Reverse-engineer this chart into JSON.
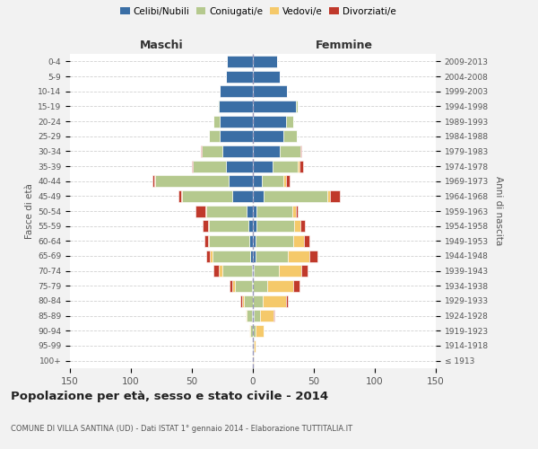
{
  "age_groups": [
    "100+",
    "95-99",
    "90-94",
    "85-89",
    "80-84",
    "75-79",
    "70-74",
    "65-69",
    "60-64",
    "55-59",
    "50-54",
    "45-49",
    "40-44",
    "35-39",
    "30-34",
    "25-29",
    "20-24",
    "15-19",
    "10-14",
    "5-9",
    "0-4"
  ],
  "birth_years": [
    "≤ 1913",
    "1914-1918",
    "1919-1923",
    "1924-1928",
    "1929-1933",
    "1934-1938",
    "1939-1943",
    "1944-1948",
    "1949-1953",
    "1954-1958",
    "1959-1963",
    "1964-1968",
    "1969-1973",
    "1974-1978",
    "1979-1983",
    "1984-1988",
    "1989-1993",
    "1994-1998",
    "1999-2003",
    "2004-2008",
    "2009-2013"
  ],
  "male": {
    "celibi": [
      0,
      0,
      0,
      1,
      0,
      1,
      1,
      2,
      3,
      4,
      5,
      17,
      20,
      22,
      25,
      27,
      27,
      28,
      27,
      22,
      21
    ],
    "coniugati": [
      0,
      0,
      2,
      4,
      7,
      14,
      24,
      31,
      33,
      32,
      33,
      41,
      60,
      27,
      17,
      9,
      5,
      1,
      0,
      0,
      0
    ],
    "vedovi": [
      0,
      0,
      1,
      1,
      2,
      2,
      3,
      2,
      1,
      1,
      1,
      1,
      1,
      0,
      0,
      0,
      0,
      0,
      0,
      0,
      0
    ],
    "divorziati": [
      0,
      0,
      0,
      0,
      1,
      2,
      4,
      3,
      3,
      4,
      8,
      2,
      1,
      1,
      1,
      0,
      0,
      0,
      0,
      0,
      0
    ]
  },
  "female": {
    "nubili": [
      0,
      1,
      0,
      1,
      0,
      0,
      1,
      2,
      2,
      3,
      3,
      9,
      7,
      16,
      22,
      25,
      27,
      35,
      28,
      22,
      20
    ],
    "coniugate": [
      0,
      0,
      2,
      5,
      8,
      12,
      20,
      27,
      31,
      31,
      29,
      52,
      18,
      21,
      17,
      11,
      6,
      2,
      0,
      0,
      0
    ],
    "vedove": [
      1,
      1,
      7,
      11,
      19,
      21,
      19,
      17,
      9,
      5,
      3,
      2,
      2,
      1,
      0,
      0,
      0,
      0,
      0,
      0,
      0
    ],
    "divorziate": [
      0,
      0,
      0,
      1,
      2,
      5,
      5,
      7,
      4,
      4,
      2,
      8,
      3,
      3,
      1,
      0,
      0,
      0,
      0,
      0,
      0
    ]
  },
  "colors": {
    "celibi_nubili": "#3a6ea5",
    "coniugati": "#b5c98e",
    "vedovi": "#f5c96a",
    "divorziati": "#c0392b"
  },
  "title": "Popolazione per età, sesso e stato civile - 2014",
  "subtitle": "COMUNE DI VILLA SANTINA (UD) - Dati ISTAT 1° gennaio 2014 - Elaborazione TUTTITALIA.IT",
  "label_maschi": "Maschi",
  "label_femmine": "Femmine",
  "ylabel_left": "Fasce di età",
  "ylabel_right": "Anni di nascita",
  "legend_labels": [
    "Celibi/Nubili",
    "Coniugati/e",
    "Vedovi/e",
    "Divorziati/e"
  ],
  "xlim": 150,
  "bg_color": "#f2f2f2",
  "plot_bg_color": "#ffffff",
  "grid_color": "#cccccc"
}
